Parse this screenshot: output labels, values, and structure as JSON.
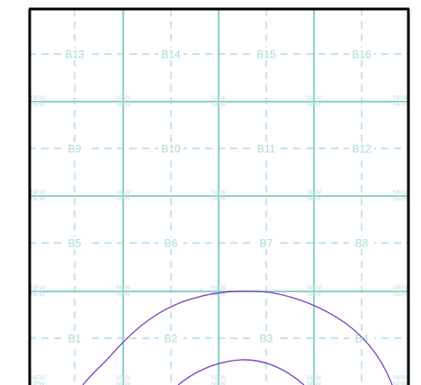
{
  "map": {
    "cell_labels": [
      {
        "id": "B13"
      },
      {
        "id": "B14"
      },
      {
        "id": "B15"
      },
      {
        "id": "B16"
      },
      {
        "id": "B9"
      },
      {
        "id": "B10"
      },
      {
        "id": "B11"
      },
      {
        "id": "B12"
      },
      {
        "id": "B5"
      },
      {
        "id": "B6"
      },
      {
        "id": "B7"
      },
      {
        "id": "B8"
      },
      {
        "id": "B1"
      },
      {
        "id": "B2"
      },
      {
        "id": "B3"
      },
      {
        "id": "B4"
      }
    ],
    "watermark_text": "NEW NEW",
    "colors": {
      "frame": "#000000",
      "grid_major": "#8ecfca",
      "grid_dash": "#9fd8d3",
      "cell_label": "#a9d9d5",
      "watermark": "#bfe3e0",
      "contour": "#7a3fc4"
    }
  }
}
